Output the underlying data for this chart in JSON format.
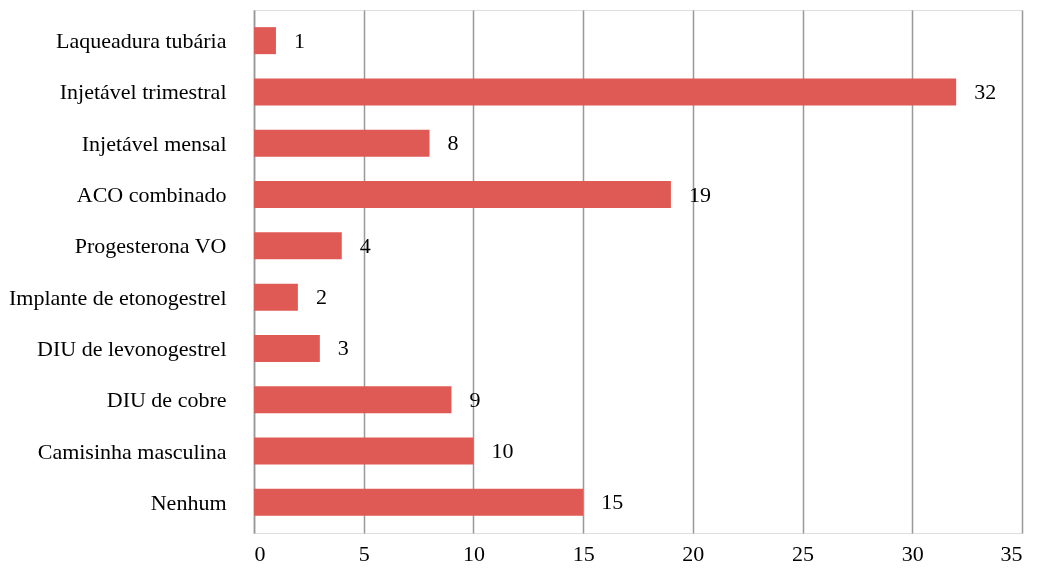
{
  "chart_data": {
    "type": "bar",
    "orientation": "horizontal",
    "categories": [
      "Laqueadura tubária",
      "Injetável trimestral",
      "Injetável mensal",
      "ACO combinado",
      "Progesterona VO",
      "Implante de etonogestrel",
      "DIU de levonogestrel",
      "DIU de cobre",
      "Camisinha masculina",
      "Nenhum"
    ],
    "values": [
      1,
      32,
      8,
      19,
      4,
      2,
      3,
      9,
      10,
      15
    ],
    "color": "#e05a55",
    "xlim": [
      0,
      35
    ],
    "xticks": [
      0,
      5,
      10,
      15,
      20,
      25,
      30,
      35
    ],
    "grid": "x",
    "data_labels": true
  }
}
